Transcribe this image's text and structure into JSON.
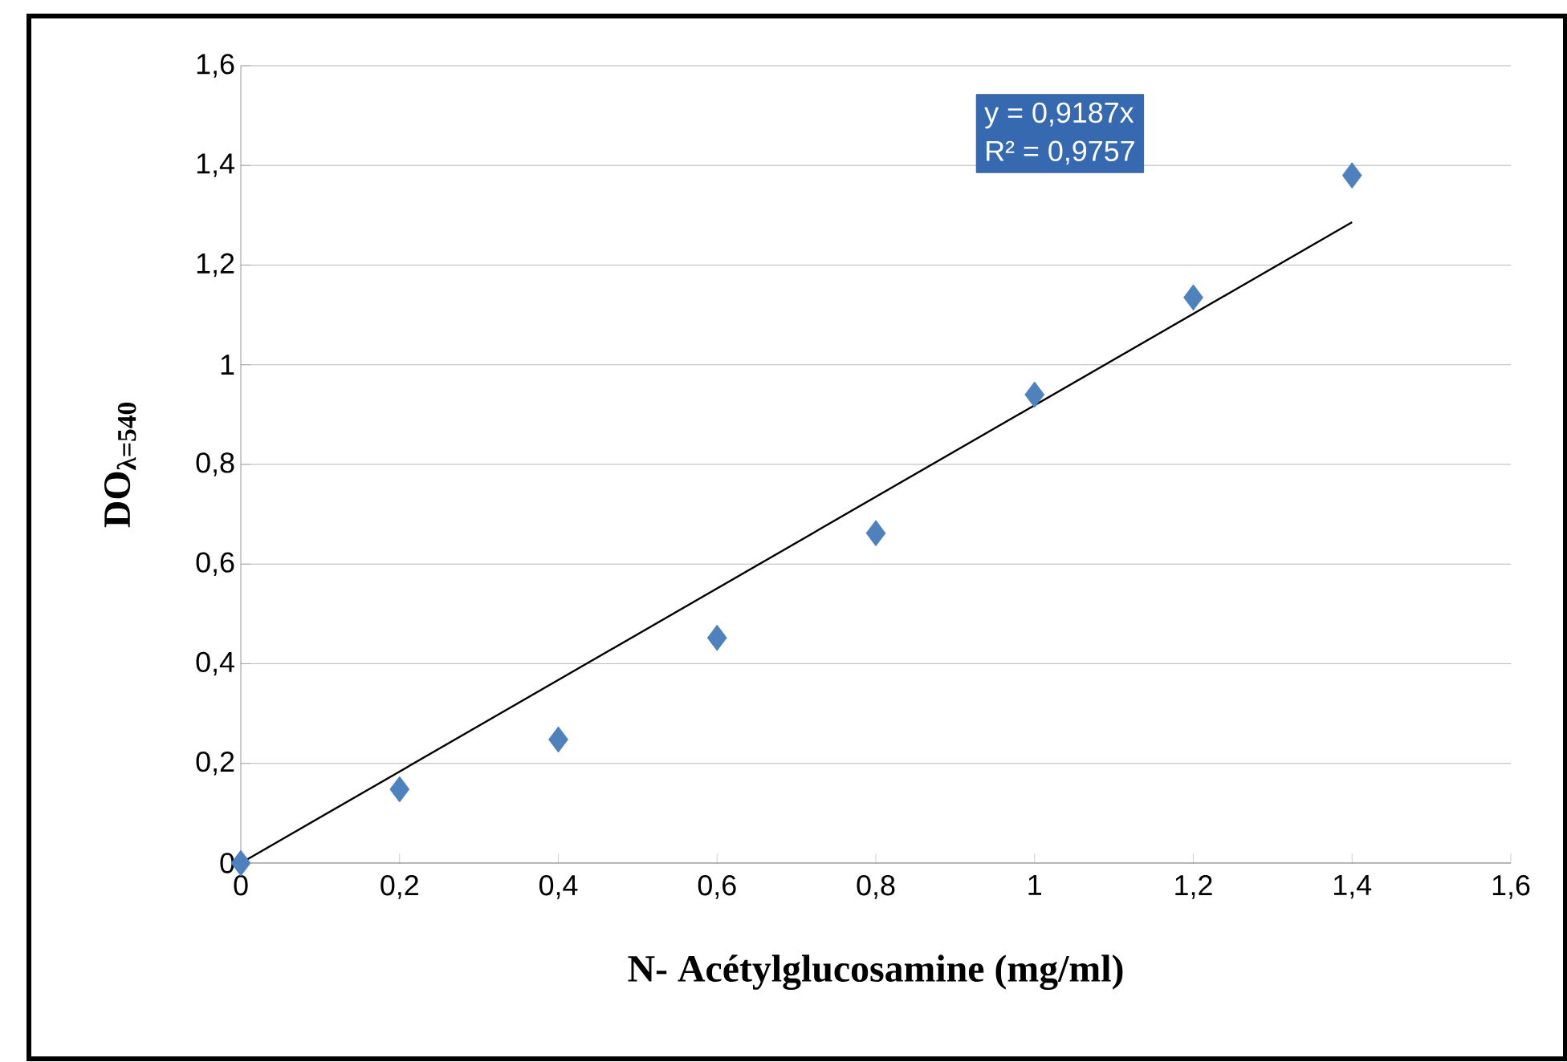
{
  "chart_data": {
    "type": "scatter",
    "xlabel": "N- Acétylglucosamine (mg/ml)",
    "ylabel": "DO$_{λ=540}$",
    "annotations": [
      "y = 0,9187x",
      "R² = 0,9757"
    ],
    "x": [
      0,
      0.2,
      0.4,
      0.6,
      0.8,
      1,
      1.2,
      1.4
    ],
    "series": [
      {
        "color": "#4f81bd",
        "marker": "diamond",
        "values": [
          0,
          0.148,
          0.248,
          0.452,
          0.662,
          0.94,
          1.135,
          1.38
        ]
      },
      {
        "type": "line",
        "color": "#000000",
        "marker": "none",
        "x": [
          0,
          1.4
        ],
        "values": [
          0,
          1.286
        ]
      }
    ],
    "xlim": [
      0,
      1.6
    ],
    "ylim": [
      0,
      1.6
    ],
    "xticks": [
      0,
      {
        "value": 0.2,
        "label": "0,2"
      },
      {
        "value": 0.4,
        "label": "0,4"
      },
      {
        "value": 0.6,
        "label": "0,6"
      },
      {
        "value": 0.8,
        "label": "0,8"
      },
      1,
      {
        "value": 1.2,
        "label": "1,2"
      },
      {
        "value": 1.4,
        "label": "1,4"
      },
      {
        "value": 1.6,
        "label": "1,6"
      }
    ],
    "yticks": [
      0,
      {
        "value": 0.2,
        "label": "0,2"
      },
      {
        "value": 0.4,
        "label": "0,4"
      },
      {
        "value": 0.6,
        "label": "0,6"
      },
      {
        "value": 0.8,
        "label": "0,8"
      },
      1,
      {
        "value": 1.2,
        "label": "1,2"
      },
      {
        "value": 1.4,
        "label": "1,4"
      },
      {
        "value": 1.6,
        "label": "1,6"
      }
    ],
    "grid": "y"
  }
}
